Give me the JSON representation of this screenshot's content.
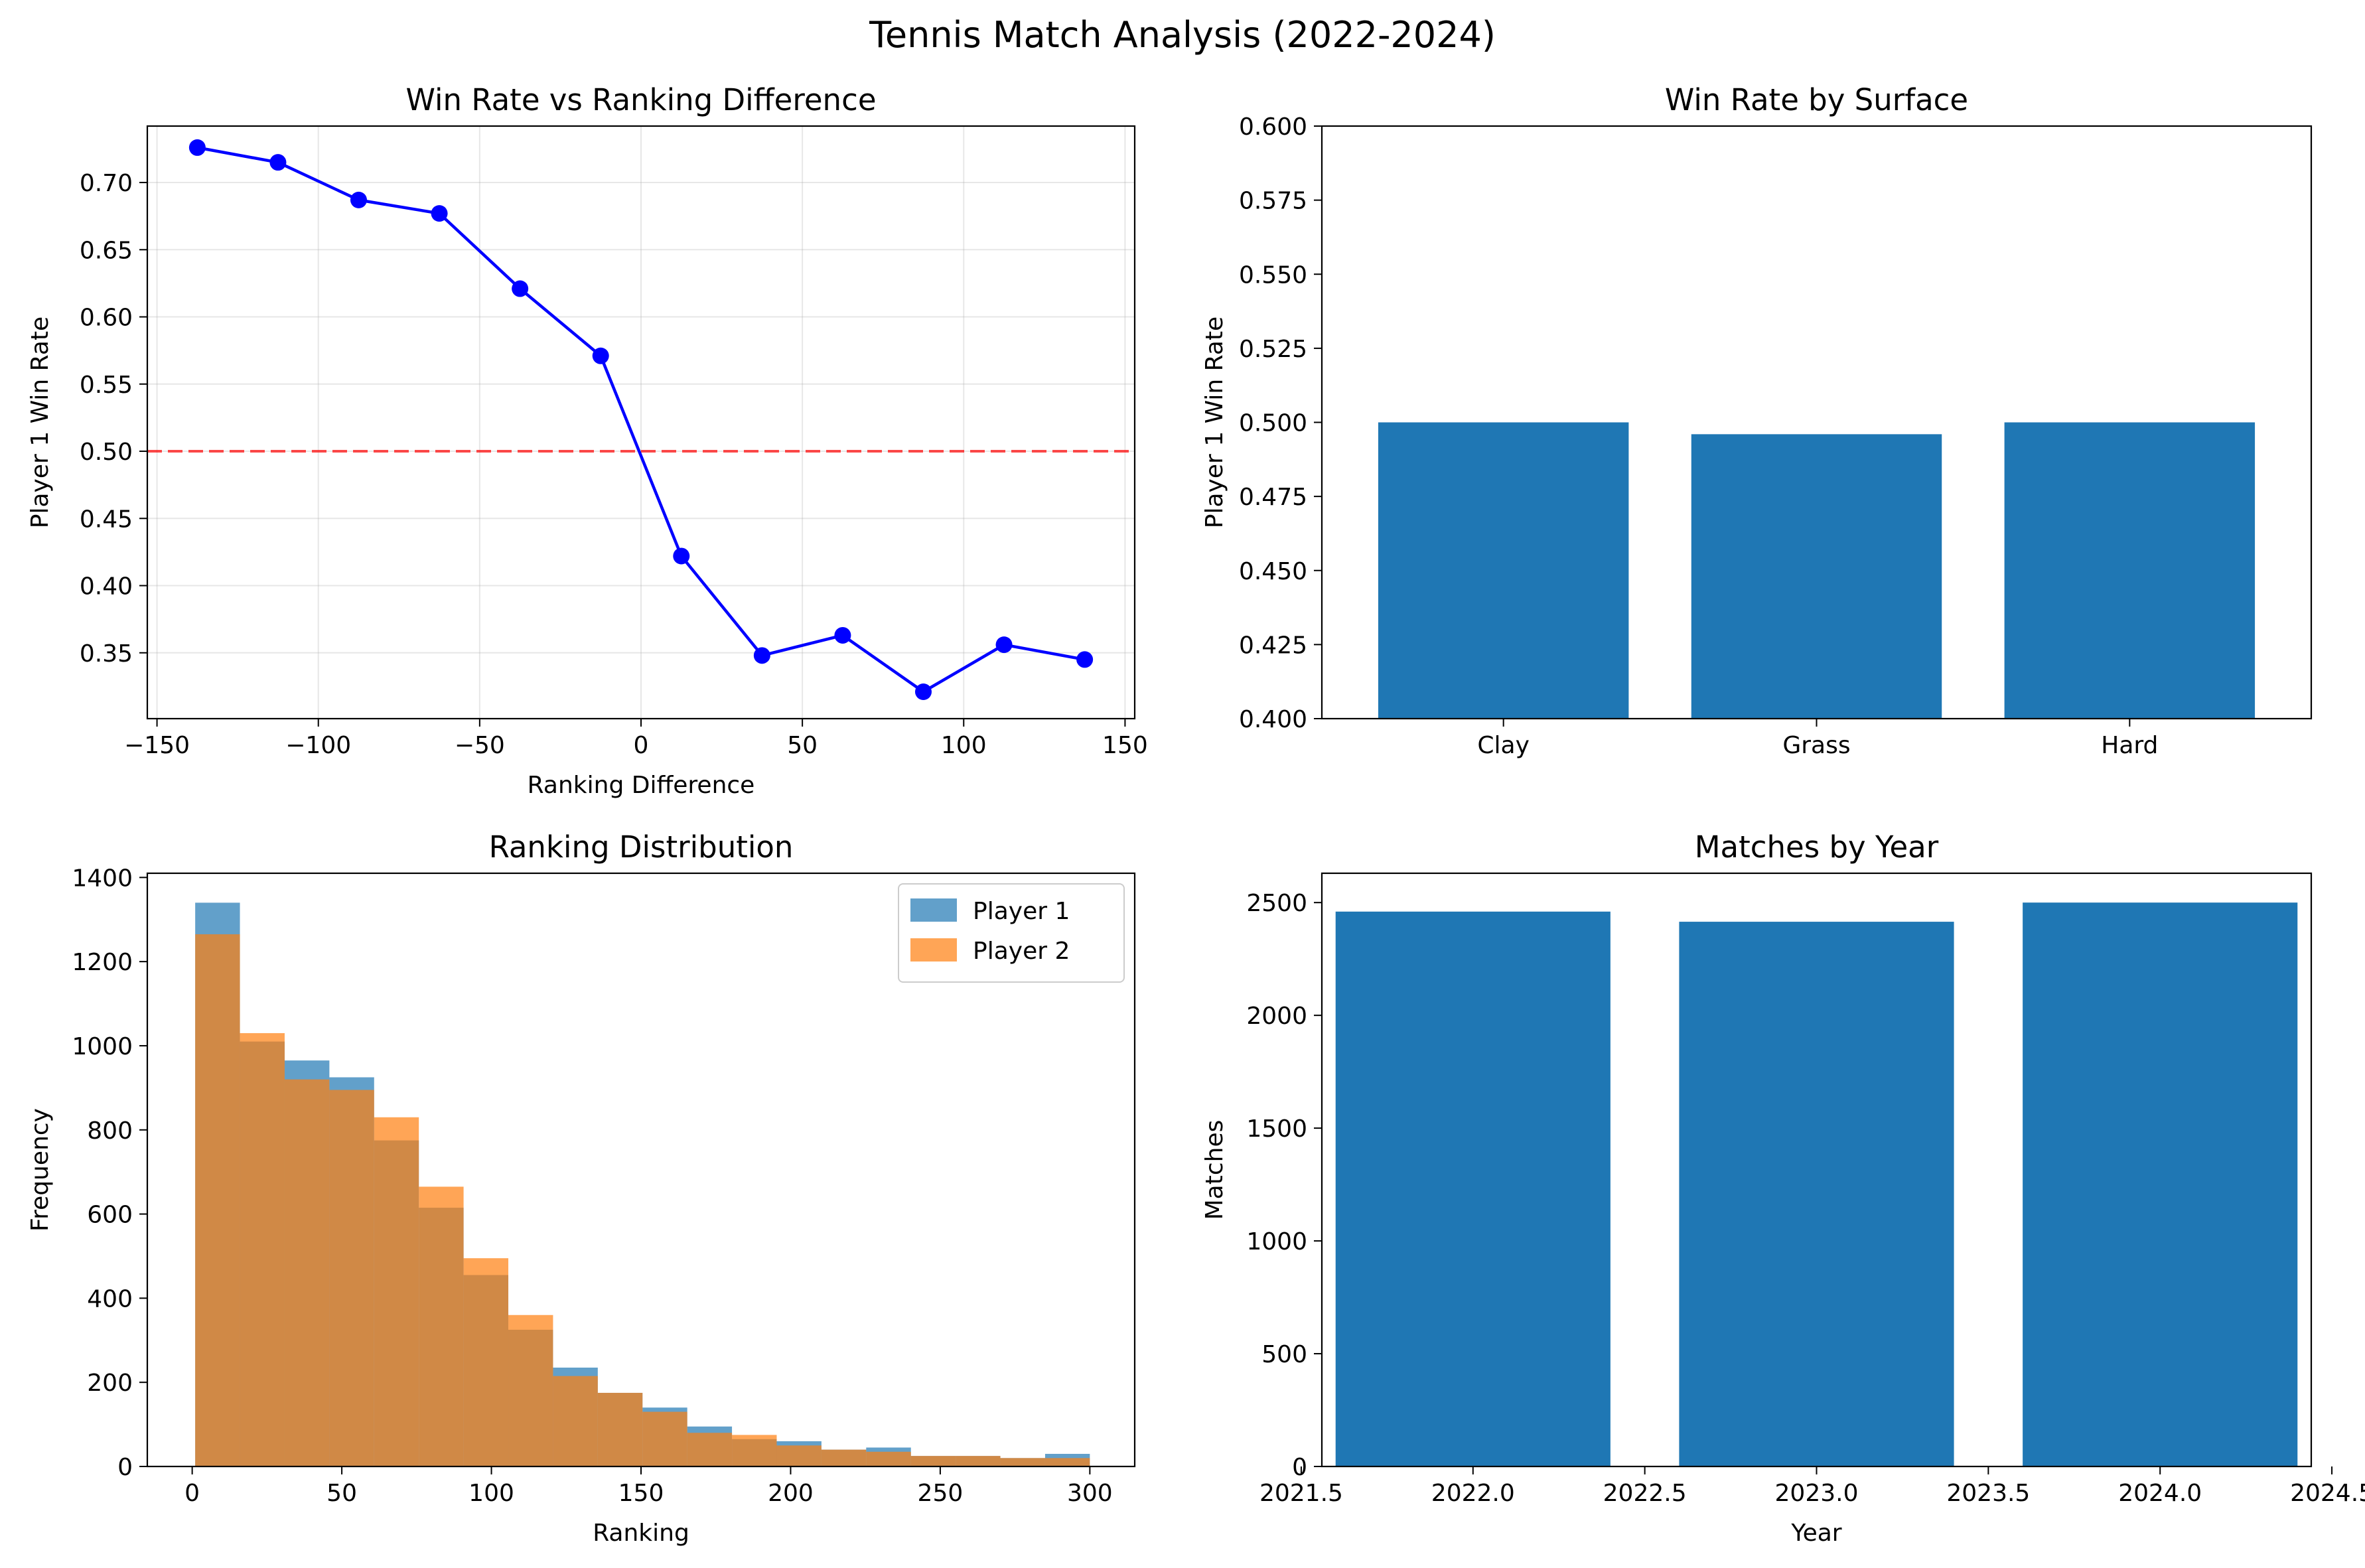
{
  "suptitle": "Tennis Match Analysis (2022-2024)",
  "charts": [
    {
      "type": "line",
      "title": "Win Rate vs Ranking Difference",
      "xlabel": "Ranking Difference",
      "ylabel": "Player 1 Win Rate",
      "xlim": [
        -153,
        153
      ],
      "ylim": [
        0.301,
        0.742
      ],
      "xticks": [
        -150,
        -100,
        -50,
        0,
        50,
        100,
        150
      ],
      "yticks": [
        0.35,
        0.4,
        0.45,
        0.5,
        0.55,
        0.6,
        0.65,
        0.7
      ],
      "xtick_labels": [
        "−150",
        "−100",
        "−50",
        "0",
        "50",
        "100",
        "150"
      ],
      "ytick_labels": [
        "0.35",
        "0.40",
        "0.45",
        "0.50",
        "0.55",
        "0.60",
        "0.65",
        "0.70"
      ],
      "grid": true,
      "reference_line": {
        "y": 0.5,
        "color": "#ff0000",
        "style": "dashed"
      },
      "series": [
        {
          "color": "#0000ff",
          "x": [
            -137.5,
            -112.5,
            -87.5,
            -62.5,
            -37.5,
            -12.5,
            12.5,
            37.5,
            62.5,
            87.5,
            112.5,
            137.5
          ],
          "y": [
            0.726,
            0.715,
            0.687,
            0.677,
            0.621,
            0.571,
            0.422,
            0.348,
            0.363,
            0.321,
            0.356,
            0.345
          ]
        }
      ]
    },
    {
      "type": "bar",
      "title": "Win Rate by Surface",
      "xlabel": "",
      "ylabel": "Player 1 Win Rate",
      "categories": [
        "Clay",
        "Grass",
        "Hard"
      ],
      "values": [
        0.5,
        0.496,
        0.5
      ],
      "ylim": [
        0.4,
        0.6
      ],
      "yticks": [
        0.4,
        0.425,
        0.45,
        0.475,
        0.5,
        0.525,
        0.55,
        0.575,
        0.6
      ],
      "ytick_labels": [
        "0.400",
        "0.425",
        "0.450",
        "0.475",
        "0.500",
        "0.525",
        "0.550",
        "0.575",
        "0.600"
      ],
      "color": "#1f77b4",
      "grid": false
    },
    {
      "type": "histogram",
      "title": "Ranking Distribution",
      "xlabel": "Ranking",
      "ylabel": "Frequency",
      "xlim": [
        -15,
        315
      ],
      "ylim": [
        0,
        1410
      ],
      "xticks": [
        0,
        50,
        100,
        150,
        200,
        250,
        300
      ],
      "yticks": [
        0,
        200,
        400,
        600,
        800,
        1000,
        1200,
        1400
      ],
      "xtick_labels": [
        "0",
        "50",
        "100",
        "150",
        "200",
        "250",
        "300"
      ],
      "ytick_labels": [
        "0",
        "200",
        "400",
        "600",
        "800",
        "1000",
        "1200",
        "1400"
      ],
      "bin_edges": [
        1,
        15.95,
        30.9,
        45.85,
        60.8,
        75.75,
        90.7,
        105.65,
        120.6,
        135.55,
        150.5,
        165.45,
        180.4,
        195.35,
        210.3,
        225.25,
        240.2,
        255.15,
        270.1,
        285.05,
        300
      ],
      "legend_position": "top-right",
      "grid": false,
      "series": [
        {
          "name": "Player 1",
          "color": "#1f77b4",
          "values": [
            1340,
            1010,
            965,
            925,
            775,
            615,
            455,
            325,
            235,
            175,
            140,
            95,
            65,
            60,
            40,
            45,
            25,
            25,
            20,
            30
          ]
        },
        {
          "name": "Player 2",
          "color": "#ff7f0e",
          "values": [
            1265,
            1030,
            920,
            895,
            830,
            665,
            495,
            360,
            215,
            175,
            130,
            80,
            75,
            50,
            40,
            35,
            25,
            25,
            20,
            20
          ]
        }
      ]
    },
    {
      "type": "bar",
      "title": "Matches by Year",
      "xlabel": "Year",
      "ylabel": "Matches",
      "x": [
        2022,
        2023,
        2024
      ],
      "values": [
        2460,
        2415,
        2500
      ],
      "bar_width": 0.8,
      "xlim": [
        2021.56,
        2024.44
      ],
      "ylim": [
        0,
        2630
      ],
      "xticks": [
        2021.5,
        2022.0,
        2022.5,
        2023.0,
        2023.5,
        2024.0,
        2024.5
      ],
      "yticks": [
        0,
        500,
        1000,
        1500,
        2000,
        2500
      ],
      "xtick_labels": [
        "2021.5",
        "2022.0",
        "2022.5",
        "2023.0",
        "2023.5",
        "2024.0",
        "2024.5"
      ],
      "ytick_labels": [
        "0",
        "500",
        "1000",
        "1500",
        "2000",
        "2500"
      ],
      "color": "#1f77b4",
      "grid": false
    }
  ]
}
